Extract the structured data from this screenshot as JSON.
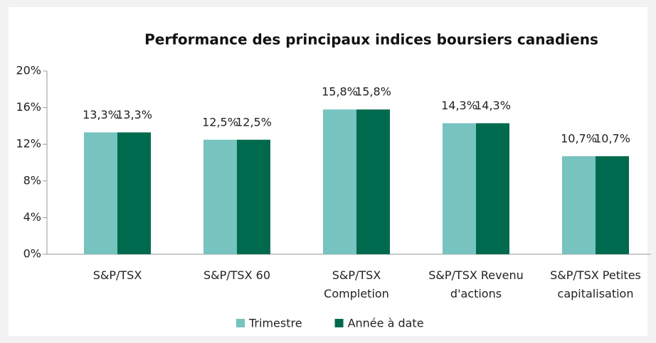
{
  "chart_data": {
    "type": "bar",
    "title": "Performance des principaux indices boursiers canadiens",
    "categories": [
      [
        "S&P/TSX"
      ],
      [
        "S&P/TSX 60"
      ],
      [
        "S&P/TSX",
        "Completion"
      ],
      [
        "S&P/TSX Revenu",
        "d'actions"
      ],
      [
        "S&P/TSX Petites",
        "capitalisation"
      ]
    ],
    "series": [
      {
        "name": "Trimestre",
        "color": "#76c3c0",
        "values": [
          13.3,
          12.5,
          15.8,
          14.3,
          10.7
        ],
        "value_labels": [
          "13,3%",
          "12,5%",
          "15,8%",
          "14,3%",
          "10,7%"
        ]
      },
      {
        "name": "Année à date",
        "color": "#006a4e",
        "values": [
          13.3,
          12.5,
          15.8,
          14.3,
          10.7
        ],
        "value_labels": [
          "13,3%",
          "12,5%",
          "15,8%",
          "14,3%",
          "10,7%"
        ]
      }
    ],
    "ylim": [
      0,
      20
    ],
    "yticks": [
      {
        "value": 0,
        "label": "0%"
      },
      {
        "value": 4,
        "label": "4%"
      },
      {
        "value": 8,
        "label": "8%"
      },
      {
        "value": 12,
        "label": "12%"
      },
      {
        "value": 16,
        "label": "16%"
      },
      {
        "value": 20,
        "label": "20%"
      }
    ],
    "grid": false,
    "legend": "bottom"
  }
}
